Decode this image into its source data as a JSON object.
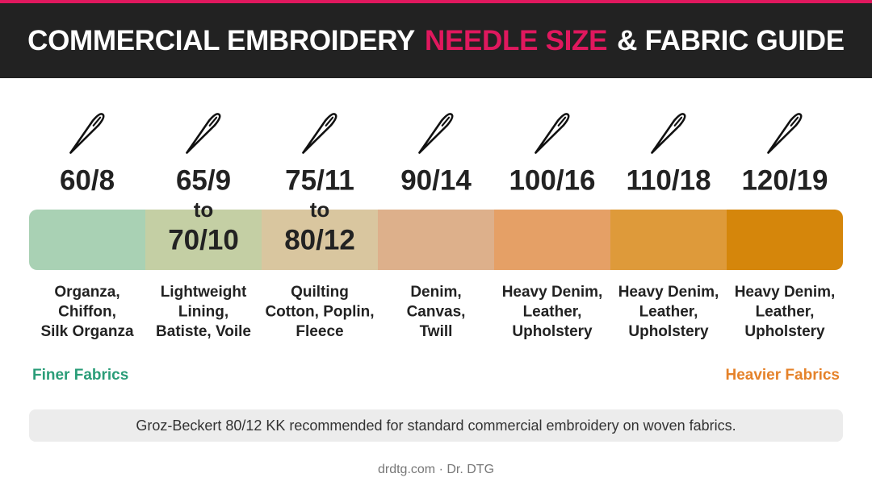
{
  "header": {
    "title_parts": [
      "COMMERCIAL EMBROIDERY",
      "NEEDLE SIZE",
      "& FABRIC GUIDE"
    ],
    "accent_color": "#e0185e"
  },
  "columns": [
    {
      "size_lines": [
        "60/8"
      ],
      "fabric_lines": [
        "Organza,",
        "Chiffon,",
        "Silk Organza"
      ],
      "color": "#a9d1b4"
    },
    {
      "size_lines": [
        "65/9",
        "to",
        "70/10"
      ],
      "fabric_lines": [
        "Lightweight",
        "Lining,",
        "Batiste, Voile"
      ],
      "color": "#c4cfa4"
    },
    {
      "size_lines": [
        "75/11",
        "to",
        "80/12"
      ],
      "fabric_lines": [
        "Quilting",
        "Cotton, Poplin,",
        "Fleece"
      ],
      "color": "#d9c69f"
    },
    {
      "size_lines": [
        "90/14"
      ],
      "fabric_lines": [
        "Denim,",
        "Canvas,",
        "Twill"
      ],
      "color": "#ddb08b"
    },
    {
      "size_lines": [
        "100/16"
      ],
      "fabric_lines": [
        "Heavy Denim,",
        "Leather,",
        "Upholstery"
      ],
      "color": "#e5a066"
    },
    {
      "size_lines": [
        "110/18"
      ],
      "fabric_lines": [
        "Heavy Denim,",
        "Leather,",
        "Upholstery"
      ],
      "color": "#de9a3a"
    },
    {
      "size_lines": [
        "120/19"
      ],
      "fabric_lines": [
        "Heavy Denim,",
        "Leather,",
        "Upholstery"
      ],
      "color": "#d5860b"
    }
  ],
  "scale": {
    "left_label": "Finer Fabrics",
    "left_color": "#2a9d78",
    "right_label": "Heavier Fabrics",
    "right_color": "#e5822a"
  },
  "note": "Groz-Beckert 80/12 KK recommended for standard commercial embroidery on woven fabrics.",
  "footer": "drdtg.com · Dr. DTG"
}
